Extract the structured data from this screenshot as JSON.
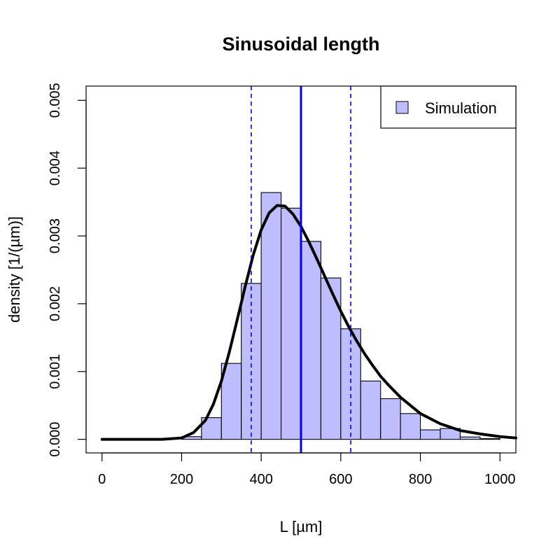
{
  "chart_data": {
    "type": "bar",
    "title": "Sinusoidal length",
    "xlabel": "L [µm]",
    "ylabel": "density [1/(µm)]",
    "xlim": [
      -40,
      1040
    ],
    "ylim": [
      -0.0002,
      0.00521
    ],
    "x_ticks": [
      0,
      200,
      400,
      600,
      800,
      1000
    ],
    "y_ticks": [
      0.0,
      0.001,
      0.002,
      0.003,
      0.004,
      0.005
    ],
    "y_tick_labels": [
      "0.000",
      "0.001",
      "0.002",
      "0.003",
      "0.004",
      "0.005"
    ],
    "grid": false,
    "legend_position": "top-right",
    "histogram": {
      "name": "Simulation",
      "color": "#bebeff",
      "bin_edges": [
        200,
        250,
        300,
        350,
        400,
        450,
        500,
        550,
        600,
        650,
        700,
        750,
        800,
        850,
        900,
        950,
        1000
      ],
      "density": [
        4e-05,
        0.00032,
        0.00112,
        0.0023,
        0.00364,
        0.00341,
        0.00292,
        0.00238,
        0.00163,
        0.00086,
        0.0006,
        0.00038,
        0.00014,
        0.00016,
        3.5e-05,
        1e-05
      ]
    },
    "density_curve": {
      "color": "#000000",
      "x": [
        0,
        100,
        150,
        200,
        230,
        260,
        280,
        300,
        320,
        340,
        360,
        380,
        400,
        420,
        440,
        460,
        480,
        500,
        520,
        540,
        560,
        580,
        600,
        620,
        640,
        660,
        680,
        700,
        720,
        750,
        800,
        850,
        900,
        950,
        1000,
        1040
      ],
      "y": [
        0,
        0,
        5e-07,
        2e-05,
        0.0001,
        0.00028,
        0.00052,
        0.00086,
        0.00129,
        0.00177,
        0.00226,
        0.00272,
        0.00309,
        0.00334,
        0.00345,
        0.00344,
        0.00332,
        0.00314,
        0.00291,
        0.00266,
        0.0024,
        0.00214,
        0.00189,
        0.00166,
        0.00145,
        0.00126,
        0.00109,
        0.00093,
        0.0008,
        0.00062,
        0.00038,
        0.00023,
        0.00013,
        8e-05,
        4e-05,
        2e-05
      ]
    },
    "mean_line": {
      "x": 500,
      "color": "#0000ee"
    },
    "interval_lines": {
      "x": [
        375,
        625
      ],
      "color": "#0000ee"
    }
  }
}
